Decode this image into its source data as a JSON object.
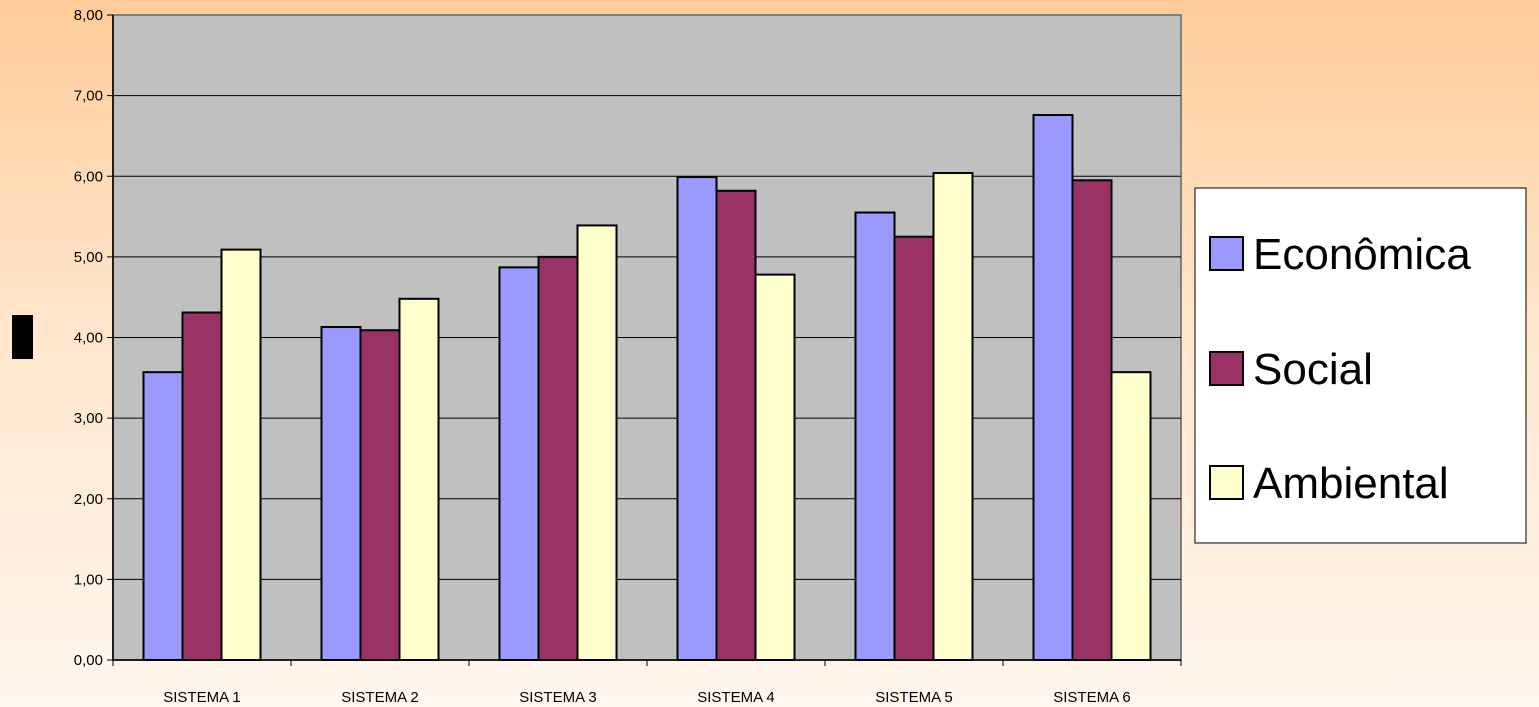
{
  "chart_data": {
    "type": "bar",
    "title": "",
    "xlabel": "",
    "ylabel": "",
    "ylim": [
      0,
      8
    ],
    "y_ticks": [
      "0,00",
      "1,00",
      "2,00",
      "3,00",
      "4,00",
      "5,00",
      "6,00",
      "7,00",
      "8,00"
    ],
    "grid": true,
    "legend_position": "right",
    "categories": [
      "SISTEMA 1",
      "SISTEMA 2",
      "SISTEMA 3",
      "SISTEMA 4",
      "SISTEMA 5",
      "SISTEMA 6"
    ],
    "series": [
      {
        "name": "Econômica",
        "color": "#9999ff",
        "values": [
          3.57,
          4.13,
          4.87,
          5.99,
          5.55,
          6.76
        ]
      },
      {
        "name": "Social",
        "color": "#993366",
        "values": [
          4.31,
          4.09,
          5.0,
          5.82,
          5.25,
          5.95
        ]
      },
      {
        "name": "Ambiental",
        "color": "#ffffcc",
        "values": [
          5.09,
          4.48,
          5.39,
          4.78,
          6.04,
          3.57
        ]
      }
    ],
    "plot_background": "#c0c0c0",
    "page_background": "#ffcc99"
  }
}
